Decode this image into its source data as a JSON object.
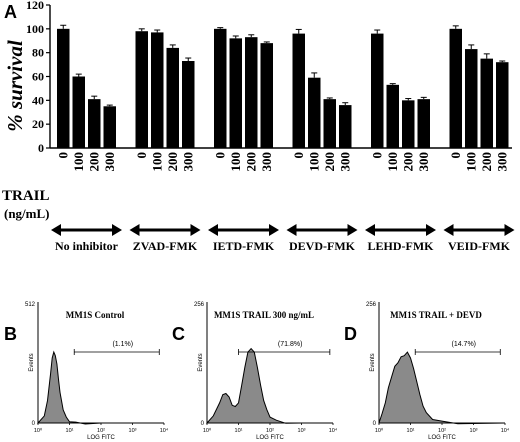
{
  "chart_data": [
    {
      "panel": "A",
      "type": "bar",
      "ylabel": "% survival",
      "ylim": [
        0,
        120
      ],
      "yticks": [
        0,
        20,
        40,
        60,
        80,
        100,
        120
      ],
      "dose_axis_label": "TRAIL",
      "dose_unit_label": "(ng/mL)",
      "dose_labels": [
        "0",
        "100",
        "200",
        "300"
      ],
      "groups": [
        {
          "name": "No inhibitor",
          "values": [
            100,
            60,
            41,
            35
          ],
          "errors": [
            3,
            2,
            2.5,
            1
          ]
        },
        {
          "name": "ZVAD-FMK",
          "values": [
            98,
            97,
            84,
            73
          ],
          "errors": [
            2,
            2,
            2.5,
            2.5
          ]
        },
        {
          "name": "IETD-FMK",
          "values": [
            100,
            92,
            93,
            88
          ],
          "errors": [
            1,
            2,
            2,
            1
          ]
        },
        {
          "name": "DEVD-FMK",
          "values": [
            96,
            59,
            41,
            36
          ],
          "errors": [
            3.5,
            4,
            1,
            2
          ]
        },
        {
          "name": "LEHD-FMK",
          "values": [
            96,
            53,
            40,
            41
          ],
          "errors": [
            3,
            1,
            1.5,
            1.5
          ]
        },
        {
          "name": "VEID-FMK",
          "values": [
            100,
            83,
            75,
            72
          ],
          "errors": [
            2.5,
            3.5,
            4,
            1
          ]
        }
      ]
    },
    {
      "panel": "B",
      "type": "area",
      "title": "MM1S Control",
      "gate_label": "(1.1%)",
      "ylabel": "Events",
      "xlabel": "LOG FITC",
      "y_max_label": "512",
      "y_zero_label": "0",
      "x_tick_labels": [
        "10⁰",
        "10¹",
        "10²",
        "10³",
        "10⁴"
      ],
      "ylim": [
        0,
        512
      ],
      "xlim_log": [
        0,
        4
      ],
      "gate_log": [
        1.15,
        3.85
      ],
      "x_log": [
        0,
        0.2,
        0.3,
        0.4,
        0.45,
        0.5,
        0.55,
        0.6,
        0.65,
        0.7,
        0.8,
        0.9,
        1.0,
        1.2,
        1.5,
        2.0,
        4.0
      ],
      "y": [
        0,
        30,
        100,
        210,
        280,
        300,
        290,
        250,
        190,
        130,
        60,
        25,
        10,
        4,
        1,
        0,
        0
      ]
    },
    {
      "panel": "C",
      "type": "area",
      "title": "MM1S TRAIL 300 ng/mL",
      "gate_label": "(71.8%)",
      "ylabel": "Events",
      "xlabel": "LOG FITC",
      "y_max_label": "256",
      "y_zero_label": "0",
      "x_tick_labels": [
        "10⁰",
        "10¹",
        "10²",
        "10³",
        "10⁴"
      ],
      "ylim": [
        0,
        256
      ],
      "xlim_log": [
        0,
        4
      ],
      "gate_log": [
        1.0,
        3.9
      ],
      "x_log": [
        0,
        0.2,
        0.4,
        0.5,
        0.6,
        0.7,
        0.8,
        0.9,
        1.0,
        1.1,
        1.2,
        1.3,
        1.4,
        1.5,
        1.6,
        1.7,
        1.8,
        1.9,
        2.0,
        2.2,
        2.5,
        3.0,
        4.0
      ],
      "y": [
        0,
        15,
        45,
        60,
        65,
        55,
        40,
        35,
        45,
        80,
        120,
        150,
        160,
        150,
        120,
        80,
        50,
        28,
        15,
        6,
        2,
        0,
        0
      ]
    },
    {
      "panel": "D",
      "type": "area",
      "title": "MM1S TRAIL + DEVD",
      "gate_label": "(14.7%)",
      "ylabel": "Events",
      "xlabel": "LOG FITC",
      "y_max_label": "256",
      "y_zero_label": "0",
      "x_tick_labels": [
        "10⁰",
        "10¹",
        "10²",
        "10³",
        "10⁴"
      ],
      "ylim": [
        0,
        256
      ],
      "xlim_log": [
        0,
        4
      ],
      "gate_log": [
        1.15,
        3.85
      ],
      "x_log": [
        0,
        0.1,
        0.2,
        0.3,
        0.4,
        0.5,
        0.6,
        0.7,
        0.8,
        0.9,
        1.0,
        1.1,
        1.2,
        1.3,
        1.4,
        1.5,
        1.7,
        2.0,
        2.5,
        4.0
      ],
      "y": [
        0,
        20,
        45,
        75,
        100,
        120,
        130,
        140,
        145,
        150,
        140,
        115,
        90,
        60,
        38,
        22,
        10,
        4,
        1,
        0
      ]
    }
  ],
  "panel_letters": [
    "A",
    "B",
    "C",
    "D"
  ]
}
